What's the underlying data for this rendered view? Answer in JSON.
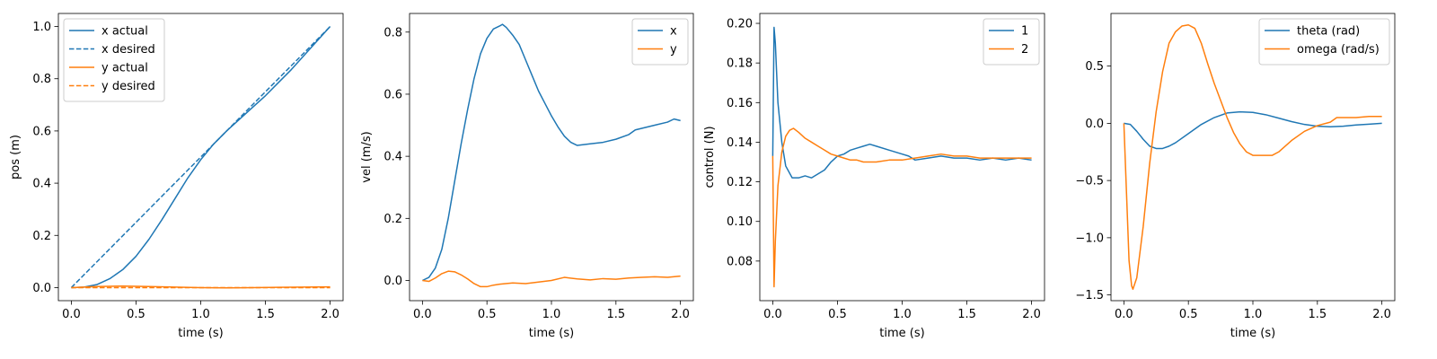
{
  "chart_data": [
    {
      "type": "line",
      "xlabel": "time (s)",
      "ylabel": "pos (m)",
      "xlim": [
        -0.1,
        2.1
      ],
      "ylim": [
        -0.05,
        1.05
      ],
      "xticks": [
        0.0,
        0.5,
        1.0,
        1.5,
        2.0
      ],
      "xtick_labels": [
        "0.0",
        "0.5",
        "1.0",
        "1.5",
        "2.0"
      ],
      "yticks": [
        0.0,
        0.2,
        0.4,
        0.6,
        0.8,
        1.0
      ],
      "ytick_labels": [
        "0.0",
        "0.2",
        "0.4",
        "0.6",
        "0.8",
        "1.0"
      ],
      "grid": false,
      "legend": "upper-left",
      "series": [
        {
          "name": "x actual",
          "color": "#1f77b4",
          "dash": "solid",
          "x": [
            0,
            0.1,
            0.2,
            0.3,
            0.4,
            0.5,
            0.6,
            0.7,
            0.8,
            0.9,
            1.0,
            1.1,
            1.2,
            1.3,
            1.4,
            1.5,
            1.6,
            1.7,
            1.8,
            1.9,
            2.0
          ],
          "y": [
            0.0,
            0.002,
            0.012,
            0.035,
            0.07,
            0.12,
            0.185,
            0.26,
            0.34,
            0.42,
            0.49,
            0.55,
            0.6,
            0.645,
            0.69,
            0.735,
            0.785,
            0.835,
            0.89,
            0.945,
            1.0
          ]
        },
        {
          "name": "x desired",
          "color": "#1f77b4",
          "dash": "dashed",
          "x": [
            0,
            2.0
          ],
          "y": [
            0.0,
            1.0
          ]
        },
        {
          "name": "y actual",
          "color": "#ff7f0e",
          "dash": "solid",
          "x": [
            0,
            0.2,
            0.4,
            0.6,
            0.8,
            1.0,
            1.2,
            1.4,
            1.6,
            1.8,
            2.0
          ],
          "y": [
            0.0,
            0.004,
            0.006,
            0.004,
            0.002,
            0.0,
            -0.001,
            0.0,
            0.001,
            0.002,
            0.003
          ]
        },
        {
          "name": "y desired",
          "color": "#ff7f0e",
          "dash": "dashed",
          "x": [
            0,
            2.0
          ],
          "y": [
            0.0,
            0.0
          ]
        }
      ]
    },
    {
      "type": "line",
      "xlabel": "time (s)",
      "ylabel": "vel (m/s)",
      "xlim": [
        -0.1,
        2.1
      ],
      "ylim": [
        -0.065,
        0.86
      ],
      "xticks": [
        0.0,
        0.5,
        1.0,
        1.5,
        2.0
      ],
      "xtick_labels": [
        "0.0",
        "0.5",
        "1.0",
        "1.5",
        "2.0"
      ],
      "yticks": [
        0.0,
        0.2,
        0.4,
        0.6,
        0.8
      ],
      "ytick_labels": [
        "0.0",
        "0.2",
        "0.4",
        "0.6",
        "0.8"
      ],
      "grid": false,
      "legend": "upper-right",
      "series": [
        {
          "name": "x",
          "color": "#1f77b4",
          "dash": "solid",
          "x": [
            0,
            0.05,
            0.1,
            0.15,
            0.2,
            0.25,
            0.3,
            0.35,
            0.4,
            0.45,
            0.5,
            0.55,
            0.6,
            0.62,
            0.65,
            0.7,
            0.75,
            0.8,
            0.85,
            0.9,
            0.95,
            1.0,
            1.05,
            1.1,
            1.15,
            1.2,
            1.3,
            1.4,
            1.5,
            1.6,
            1.65,
            1.7,
            1.8,
            1.9,
            1.95,
            2.0
          ],
          "y": [
            0.0,
            0.01,
            0.04,
            0.1,
            0.2,
            0.32,
            0.44,
            0.55,
            0.65,
            0.73,
            0.78,
            0.81,
            0.82,
            0.825,
            0.815,
            0.79,
            0.76,
            0.71,
            0.66,
            0.61,
            0.57,
            0.53,
            0.495,
            0.465,
            0.445,
            0.435,
            0.44,
            0.445,
            0.455,
            0.47,
            0.485,
            0.49,
            0.5,
            0.51,
            0.52,
            0.515
          ]
        },
        {
          "name": "y",
          "color": "#ff7f0e",
          "dash": "solid",
          "x": [
            0,
            0.05,
            0.1,
            0.15,
            0.2,
            0.25,
            0.3,
            0.35,
            0.4,
            0.45,
            0.5,
            0.55,
            0.6,
            0.7,
            0.8,
            0.9,
            1.0,
            1.1,
            1.2,
            1.3,
            1.4,
            1.5,
            1.6,
            1.7,
            1.8,
            1.9,
            2.0
          ],
          "y": [
            0.0,
            -0.003,
            0.008,
            0.022,
            0.03,
            0.028,
            0.018,
            0.005,
            -0.01,
            -0.02,
            -0.02,
            -0.015,
            -0.012,
            -0.008,
            -0.01,
            -0.005,
            0.0,
            0.01,
            0.005,
            0.002,
            0.006,
            0.004,
            0.008,
            0.01,
            0.012,
            0.01,
            0.014
          ]
        }
      ]
    },
    {
      "type": "line",
      "xlabel": "time (s)",
      "ylabel": "control (N)",
      "xlim": [
        -0.1,
        2.1
      ],
      "ylim": [
        0.06,
        0.205
      ],
      "xticks": [
        0.0,
        0.5,
        1.0,
        1.5,
        2.0
      ],
      "xtick_labels": [
        "0.0",
        "0.5",
        "1.0",
        "1.5",
        "2.0"
      ],
      "yticks": [
        0.08,
        0.1,
        0.12,
        0.14,
        0.16,
        0.18,
        0.2
      ],
      "ytick_labels": [
        "0.08",
        "0.10",
        "0.12",
        "0.14",
        "0.16",
        "0.18",
        "0.20"
      ],
      "grid": false,
      "legend": "upper-right",
      "series": [
        {
          "name": "1",
          "color": "#1f77b4",
          "dash": "solid",
          "x": [
            0,
            0.01,
            0.02,
            0.04,
            0.07,
            0.1,
            0.15,
            0.2,
            0.25,
            0.3,
            0.35,
            0.4,
            0.45,
            0.5,
            0.55,
            0.6,
            0.65,
            0.7,
            0.75,
            0.8,
            0.9,
            1.0,
            1.05,
            1.1,
            1.2,
            1.3,
            1.4,
            1.5,
            1.6,
            1.7,
            1.8,
            1.9,
            2.0
          ],
          "y": [
            0.133,
            0.198,
            0.19,
            0.16,
            0.14,
            0.128,
            0.122,
            0.122,
            0.123,
            0.122,
            0.124,
            0.126,
            0.13,
            0.133,
            0.134,
            0.136,
            0.137,
            0.138,
            0.139,
            0.138,
            0.136,
            0.134,
            0.133,
            0.131,
            0.132,
            0.133,
            0.132,
            0.132,
            0.131,
            0.132,
            0.131,
            0.132,
            0.131
          ]
        },
        {
          "name": "2",
          "color": "#ff7f0e",
          "dash": "solid",
          "x": [
            0,
            0.01,
            0.02,
            0.04,
            0.07,
            0.1,
            0.13,
            0.16,
            0.2,
            0.25,
            0.3,
            0.35,
            0.4,
            0.45,
            0.5,
            0.55,
            0.6,
            0.65,
            0.7,
            0.75,
            0.8,
            0.9,
            1.0,
            1.1,
            1.2,
            1.3,
            1.4,
            1.5,
            1.6,
            1.7,
            1.8,
            1.9,
            2.0
          ],
          "y": [
            0.133,
            0.067,
            0.09,
            0.118,
            0.135,
            0.143,
            0.146,
            0.147,
            0.145,
            0.142,
            0.14,
            0.138,
            0.136,
            0.134,
            0.133,
            0.132,
            0.131,
            0.131,
            0.13,
            0.13,
            0.13,
            0.131,
            0.131,
            0.132,
            0.133,
            0.134,
            0.133,
            0.133,
            0.132,
            0.132,
            0.132,
            0.132,
            0.132
          ]
        }
      ]
    },
    {
      "type": "line",
      "xlabel": "time (s)",
      "ylabel": "",
      "xlim": [
        -0.1,
        2.1
      ],
      "ylim": [
        -1.55,
        0.96
      ],
      "xticks": [
        0.0,
        0.5,
        1.0,
        1.5,
        2.0
      ],
      "xtick_labels": [
        "0.0",
        "0.5",
        "1.0",
        "1.5",
        "2.0"
      ],
      "yticks": [
        -1.5,
        -1.0,
        -0.5,
        0.0,
        0.5
      ],
      "ytick_labels": [
        "−1.5",
        "−1.0",
        "−0.5",
        "0.0",
        "0.5"
      ],
      "grid": false,
      "legend": "upper-right",
      "series": [
        {
          "name": "theta (rad)",
          "color": "#1f77b4",
          "dash": "solid",
          "x": [
            0,
            0.05,
            0.1,
            0.15,
            0.2,
            0.25,
            0.3,
            0.35,
            0.4,
            0.5,
            0.6,
            0.7,
            0.8,
            0.9,
            1.0,
            1.1,
            1.2,
            1.3,
            1.4,
            1.5,
            1.6,
            1.7,
            1.8,
            1.9,
            2.0
          ],
          "y": [
            0.0,
            -0.01,
            -0.07,
            -0.14,
            -0.2,
            -0.22,
            -0.22,
            -0.2,
            -0.17,
            -0.09,
            -0.01,
            0.05,
            0.09,
            0.1,
            0.095,
            0.075,
            0.045,
            0.015,
            -0.01,
            -0.025,
            -0.03,
            -0.025,
            -0.015,
            -0.008,
            0.0
          ]
        },
        {
          "name": "omega (rad/s)",
          "color": "#ff7f0e",
          "dash": "solid",
          "x": [
            0,
            0.02,
            0.04,
            0.06,
            0.07,
            0.1,
            0.15,
            0.2,
            0.25,
            0.3,
            0.35,
            0.4,
            0.45,
            0.5,
            0.55,
            0.6,
            0.65,
            0.7,
            0.75,
            0.8,
            0.85,
            0.9,
            0.95,
            1.0,
            1.05,
            1.1,
            1.15,
            1.2,
            1.3,
            1.4,
            1.5,
            1.6,
            1.65,
            1.7,
            1.8,
            1.9,
            2.0
          ],
          "y": [
            0.0,
            -0.6,
            -1.2,
            -1.42,
            -1.45,
            -1.35,
            -0.9,
            -0.35,
            0.1,
            0.45,
            0.7,
            0.8,
            0.85,
            0.86,
            0.83,
            0.7,
            0.52,
            0.35,
            0.2,
            0.05,
            -0.08,
            -0.18,
            -0.25,
            -0.28,
            -0.28,
            -0.28,
            -0.28,
            -0.25,
            -0.15,
            -0.07,
            -0.02,
            0.01,
            0.05,
            0.05,
            0.05,
            0.06,
            0.06
          ]
        }
      ]
    }
  ]
}
